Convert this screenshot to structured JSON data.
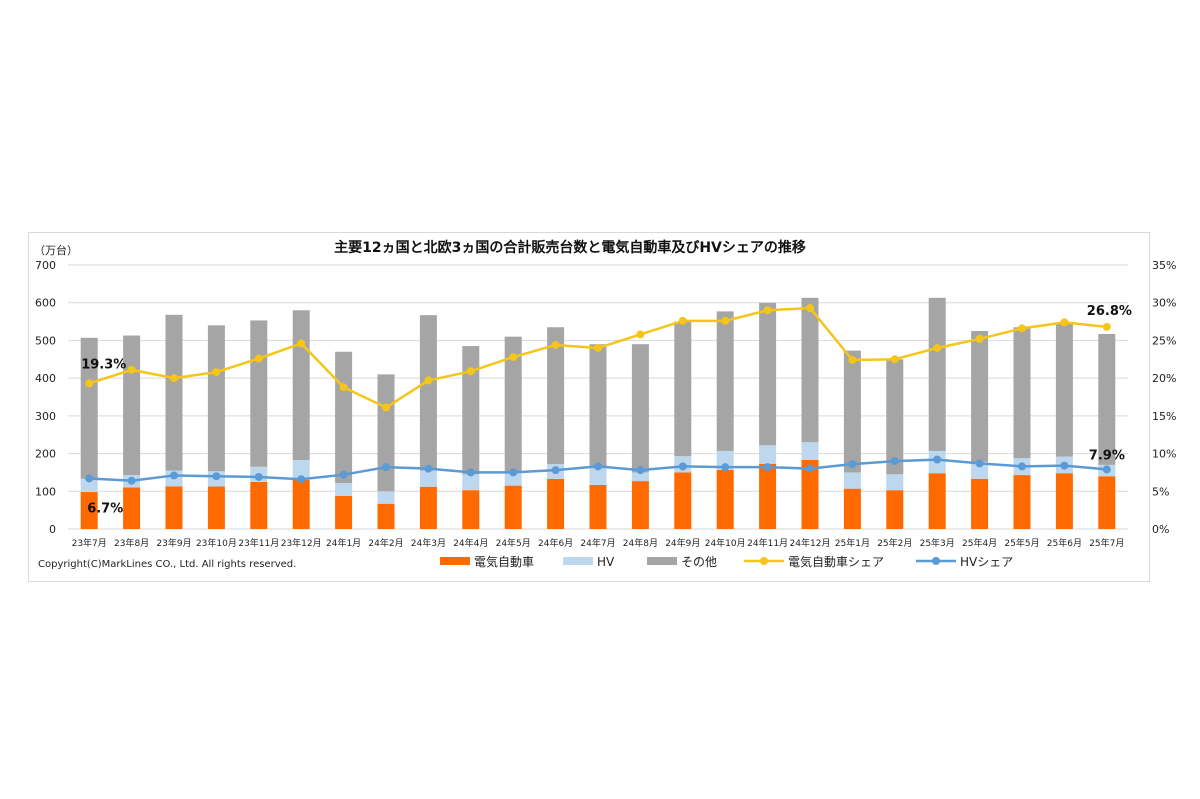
{
  "chart_data": {
    "type": "bar+line",
    "title": "主要12ヵ国と北欧3ヵ国の合計販売台数と電気自動車及びHVシェアの推移",
    "y_left_unit": "（万台）",
    "y_left_range": [
      0,
      700
    ],
    "y_left_ticks": [
      "0",
      "100",
      "200",
      "300",
      "400",
      "500",
      "600",
      "700"
    ],
    "y_right_range": [
      0,
      35
    ],
    "y_right_ticks": [
      "0%",
      "5%",
      "10%",
      "15%",
      "20%",
      "25%",
      "30%",
      "35%"
    ],
    "grid": true,
    "legend_position": "bottom",
    "categories": [
      "23年7月",
      "23年8月",
      "23年9月",
      "23年10月",
      "23年11月",
      "23年12月",
      "24年1月",
      "24年2月",
      "24年3月",
      "24年4月",
      "24年5月",
      "24年6月",
      "24年7月",
      "24年8月",
      "24年9月",
      "24年10月",
      "24年11月",
      "24年12月",
      "25年1月",
      "25年2月",
      "25年3月",
      "25年4月",
      "25年5月",
      "25年6月",
      "25年7月"
    ],
    "series": [
      {
        "name": "電気自動車",
        "type": "stacked-bar",
        "axis": "left",
        "color": "#ff6a00",
        "values": [
          98,
          110,
          113,
          113,
          125,
          130,
          88,
          67,
          112,
          103,
          115,
          133,
          117,
          127,
          150,
          157,
          173,
          183,
          107,
          103,
          148,
          133,
          143,
          148,
          140
        ]
      },
      {
        "name": "HV",
        "type": "stacked-bar",
        "axis": "left",
        "color": "#bdd7ee",
        "values": [
          35,
          33,
          42,
          40,
          40,
          53,
          34,
          33,
          43,
          42,
          35,
          39,
          46,
          23,
          43,
          50,
          49,
          47,
          43,
          42,
          59,
          45,
          45,
          44,
          30
        ]
      },
      {
        "name": "その他",
        "type": "stacked-bar",
        "axis": "left",
        "color": "#a5a5a5",
        "values": [
          374,
          370,
          413,
          387,
          388,
          397,
          348,
          310,
          412,
          340,
          360,
          363,
          327,
          340,
          357,
          370,
          378,
          383,
          323,
          305,
          406,
          347,
          347,
          353,
          347
        ]
      },
      {
        "name": "電気自動車シェア",
        "type": "line",
        "axis": "right",
        "color": "#f5c518",
        "values": [
          19.3,
          21.1,
          20.0,
          20.8,
          22.6,
          24.6,
          18.8,
          16.1,
          19.7,
          20.9,
          22.8,
          24.4,
          24.0,
          25.8,
          27.6,
          27.6,
          29.0,
          29.3,
          22.4,
          22.5,
          24.0,
          25.2,
          26.6,
          27.4,
          26.8
        ]
      },
      {
        "name": "HVシェア",
        "type": "line",
        "axis": "right",
        "color": "#5b9bd5",
        "values": [
          6.7,
          6.4,
          7.1,
          7.0,
          6.9,
          6.6,
          7.2,
          8.2,
          8.0,
          7.5,
          7.5,
          7.8,
          8.3,
          7.8,
          8.3,
          8.2,
          8.2,
          8.0,
          8.6,
          9.0,
          9.2,
          8.7,
          8.3,
          8.4,
          7.9
        ]
      }
    ],
    "annotations": [
      {
        "text": "19.3%",
        "series": "電気自動車シェア",
        "category": "23年7月"
      },
      {
        "text": "6.7%",
        "series": "HVシェア",
        "category": "23年7月"
      },
      {
        "text": "26.8%",
        "series": "電気自動車シェア",
        "category": "25年7月"
      },
      {
        "text": "7.9%",
        "series": "HVシェア",
        "category": "25年7月"
      }
    ]
  },
  "copyright": "Copyright(C)MarkLines CO., Ltd. All rights reserved."
}
